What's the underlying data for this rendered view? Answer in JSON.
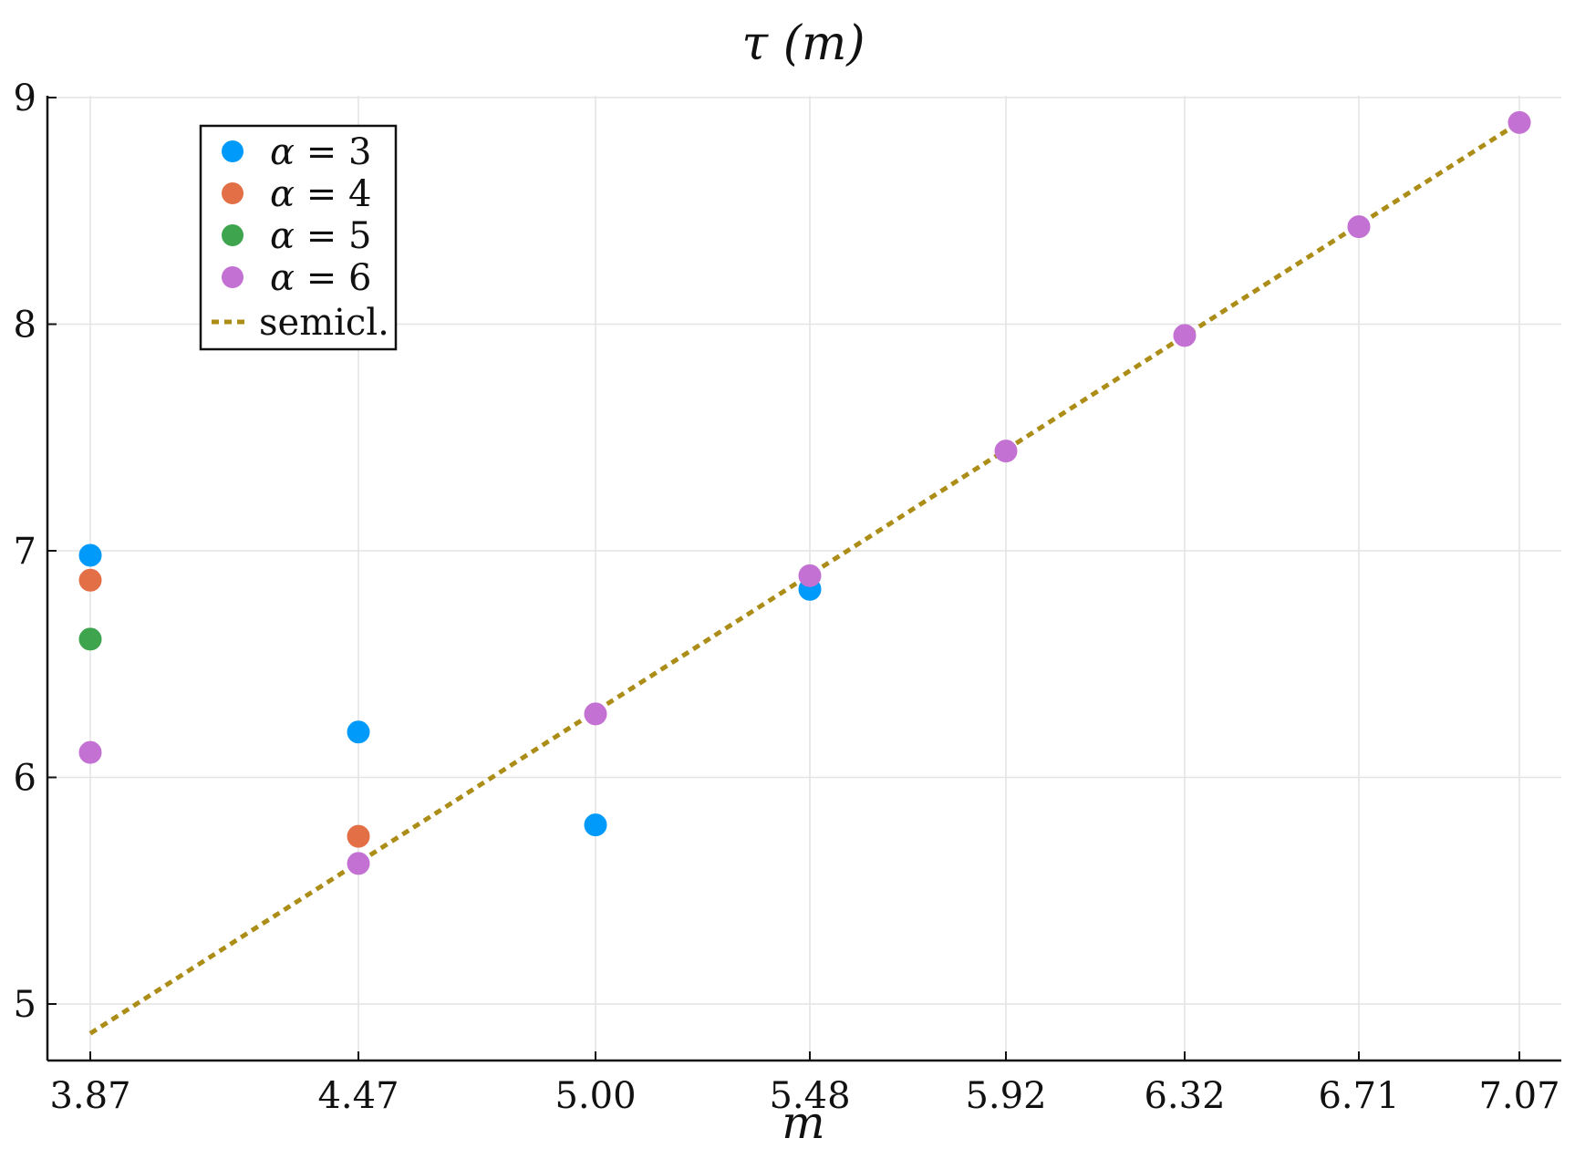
{
  "chart_data": {
    "type": "scatter",
    "title": "τ (m)",
    "xlabel": "m",
    "ylabel": "",
    "x_tick_labels": [
      "3.87",
      "4.47",
      "5.00",
      "5.48",
      "5.92",
      "6.32",
      "6.71",
      "7.07"
    ],
    "x_tick_values": [
      3.87,
      4.47,
      5.0,
      5.48,
      5.92,
      6.32,
      6.71,
      7.07
    ],
    "y_tick_labels": [
      "5",
      "6",
      "7",
      "8",
      "9"
    ],
    "y_tick_values": [
      5,
      6,
      7,
      8,
      9
    ],
    "xlim": [
      3.78,
      7.17
    ],
    "ylim": [
      4.75,
      9.0
    ],
    "grid": true,
    "legend_position": "top-left",
    "series": [
      {
        "name": "α = 3",
        "symbol": "α",
        "value_text": "= 3",
        "color": "#009AFA",
        "style": "marker",
        "x": [
          3.87,
          4.47,
          5.0,
          5.48
        ],
        "y": [
          6.98,
          6.2,
          5.79,
          6.83
        ]
      },
      {
        "name": "α = 4",
        "symbol": "α",
        "value_text": "= 4",
        "color": "#E36F47",
        "style": "marker",
        "x": [
          3.87,
          4.47
        ],
        "y": [
          6.87,
          5.74
        ]
      },
      {
        "name": "α = 5",
        "symbol": "α",
        "value_text": "= 5",
        "color": "#3EA44E",
        "style": "marker",
        "x": [
          3.87
        ],
        "y": [
          6.61
        ]
      },
      {
        "name": "α = 6",
        "symbol": "α",
        "value_text": "= 6",
        "color": "#C371D2",
        "style": "marker",
        "x": [
          3.87,
          4.47,
          5.0,
          5.48,
          5.92,
          6.32,
          6.71,
          7.07
        ],
        "y": [
          6.11,
          5.62,
          6.28,
          6.89,
          7.44,
          7.95,
          8.43,
          8.89
        ]
      },
      {
        "name": "semicl.",
        "color": "#AC8D18",
        "style": "dotted-line",
        "x": [
          3.87,
          7.07
        ],
        "y": [
          4.87,
          8.89
        ]
      }
    ]
  }
}
